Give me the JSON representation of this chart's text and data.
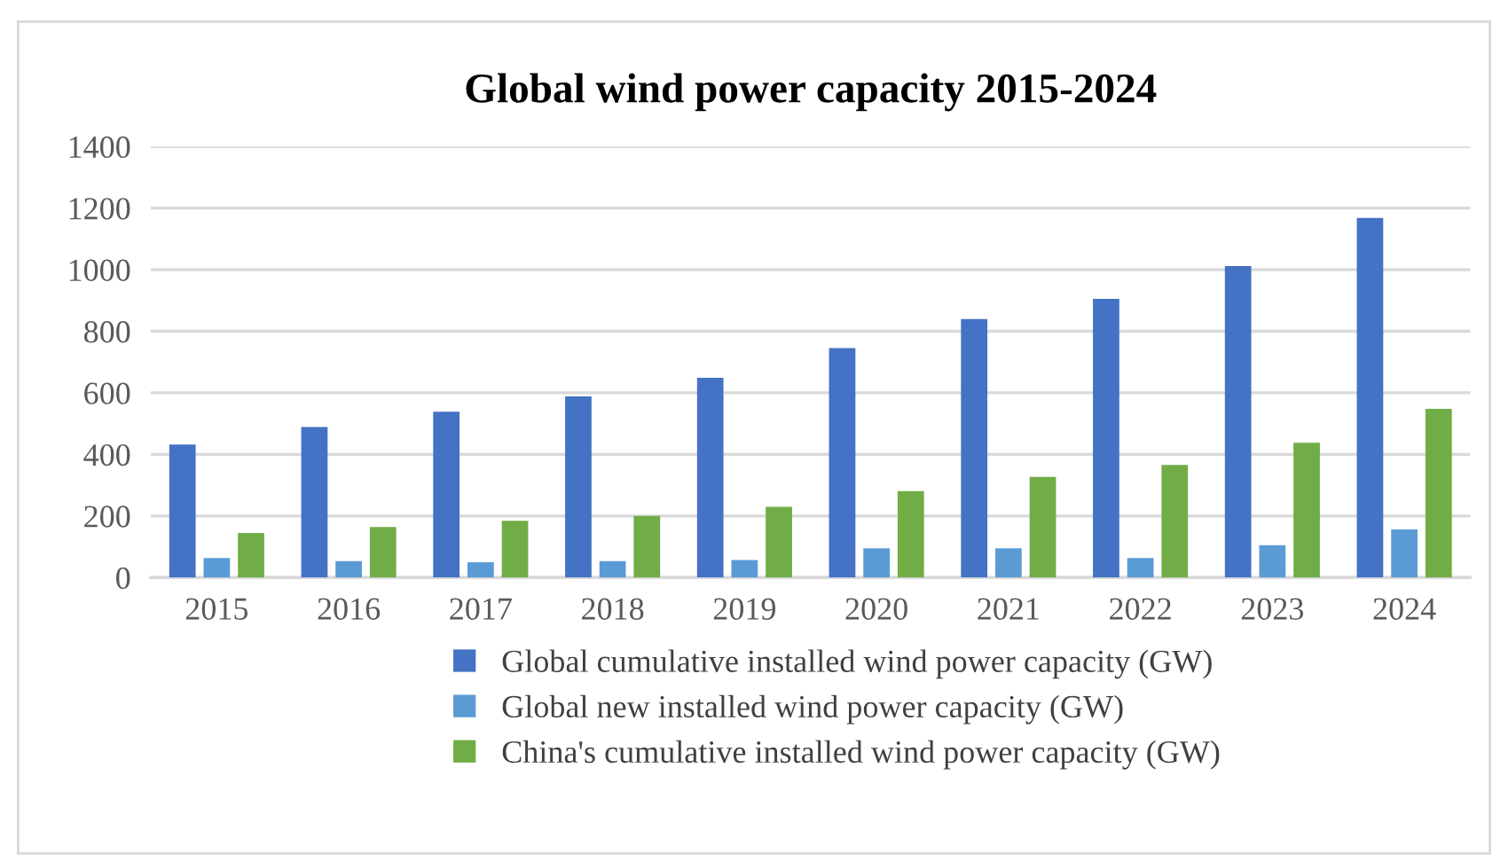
{
  "chart_data": {
    "type": "bar",
    "title": "Global wind power capacity 2015-2024",
    "categories": [
      "2015",
      "2016",
      "2017",
      "2018",
      "2019",
      "2020",
      "2021",
      "2022",
      "2023",
      "2024"
    ],
    "series": [
      {
        "name": "Global cumulative installed wind power capacity (GW)",
        "color": "#4472c4",
        "values": [
          432,
          489,
          539,
          588,
          649,
          745,
          840,
          905,
          1012,
          1168
        ]
      },
      {
        "name": "Global new installed wind power capacity (GW)",
        "color": "#5b9bd5",
        "values": [
          63,
          53,
          50,
          53,
          57,
          95,
          95,
          63,
          105,
          156
        ]
      },
      {
        "name": "China's cumulative installed wind power capacity (GW)",
        "color": "#70ad47",
        "values": [
          145,
          164,
          184,
          200,
          230,
          281,
          327,
          366,
          438,
          548
        ]
      }
    ],
    "ylim": [
      0,
      1400
    ],
    "yticks": [
      0,
      200,
      400,
      600,
      800,
      1000,
      1200,
      1400
    ],
    "grid": "y",
    "legend": "bottom"
  }
}
